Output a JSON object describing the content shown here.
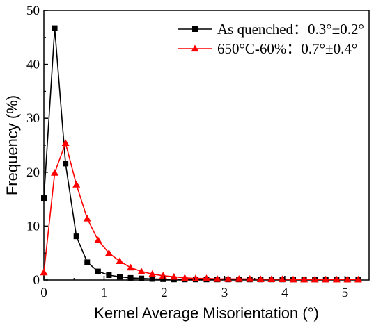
{
  "chart_data": {
    "type": "line",
    "xlabel": "Kernel Average Misorientation (°)",
    "ylabel": "Frequency (%)",
    "xlim": [
      0,
      5.4
    ],
    "ylim": [
      0,
      50
    ],
    "xticks": [
      0,
      1,
      2,
      3,
      4,
      5
    ],
    "yticks": [
      0,
      10,
      20,
      30,
      40,
      50
    ],
    "grid": false,
    "legend_position": "top-right",
    "series": [
      {
        "name": "As quenched：0.3°±0.2°",
        "color": "#000000",
        "marker": "square",
        "x": [
          0.0,
          0.18,
          0.36,
          0.54,
          0.72,
          0.9,
          1.08,
          1.26,
          1.44,
          1.62,
          1.8,
          1.98,
          2.16,
          2.34,
          2.52,
          2.7,
          2.88,
          3.06,
          3.24,
          3.42,
          3.6,
          3.78,
          3.96,
          4.14,
          4.32,
          4.5,
          4.68,
          4.86,
          5.04,
          5.22
        ],
        "values": [
          15.2,
          46.7,
          21.6,
          8.1,
          3.3,
          1.6,
          0.9,
          0.6,
          0.4,
          0.3,
          0.2,
          0.15,
          0.1,
          0.1,
          0.1,
          0.1,
          0.1,
          0.1,
          0.1,
          0.1,
          0.1,
          0.1,
          0.1,
          0.1,
          0.1,
          0.1,
          0.1,
          0.1,
          0.1,
          0.1
        ]
      },
      {
        "name": "650°C-60%：0.7°±0.4°",
        "color": "#ff0000",
        "marker": "triangle",
        "x": [
          0.0,
          0.18,
          0.36,
          0.54,
          0.72,
          0.9,
          1.08,
          1.26,
          1.44,
          1.62,
          1.8,
          1.98,
          2.16,
          2.34,
          2.52,
          2.7,
          2.88,
          3.06,
          3.24,
          3.42,
          3.6,
          3.78,
          3.96,
          4.14,
          4.32,
          4.5,
          4.68,
          4.86,
          5.04,
          5.22
        ],
        "values": [
          1.4,
          19.9,
          25.4,
          17.7,
          11.4,
          7.4,
          5.0,
          3.5,
          2.3,
          1.6,
          1.1,
          0.8,
          0.6,
          0.4,
          0.3,
          0.3,
          0.2,
          0.2,
          0.2,
          0.2,
          0.15,
          0.15,
          0.15,
          0.1,
          0.1,
          0.1,
          0.1,
          0.1,
          0.1,
          0.1
        ]
      }
    ]
  }
}
